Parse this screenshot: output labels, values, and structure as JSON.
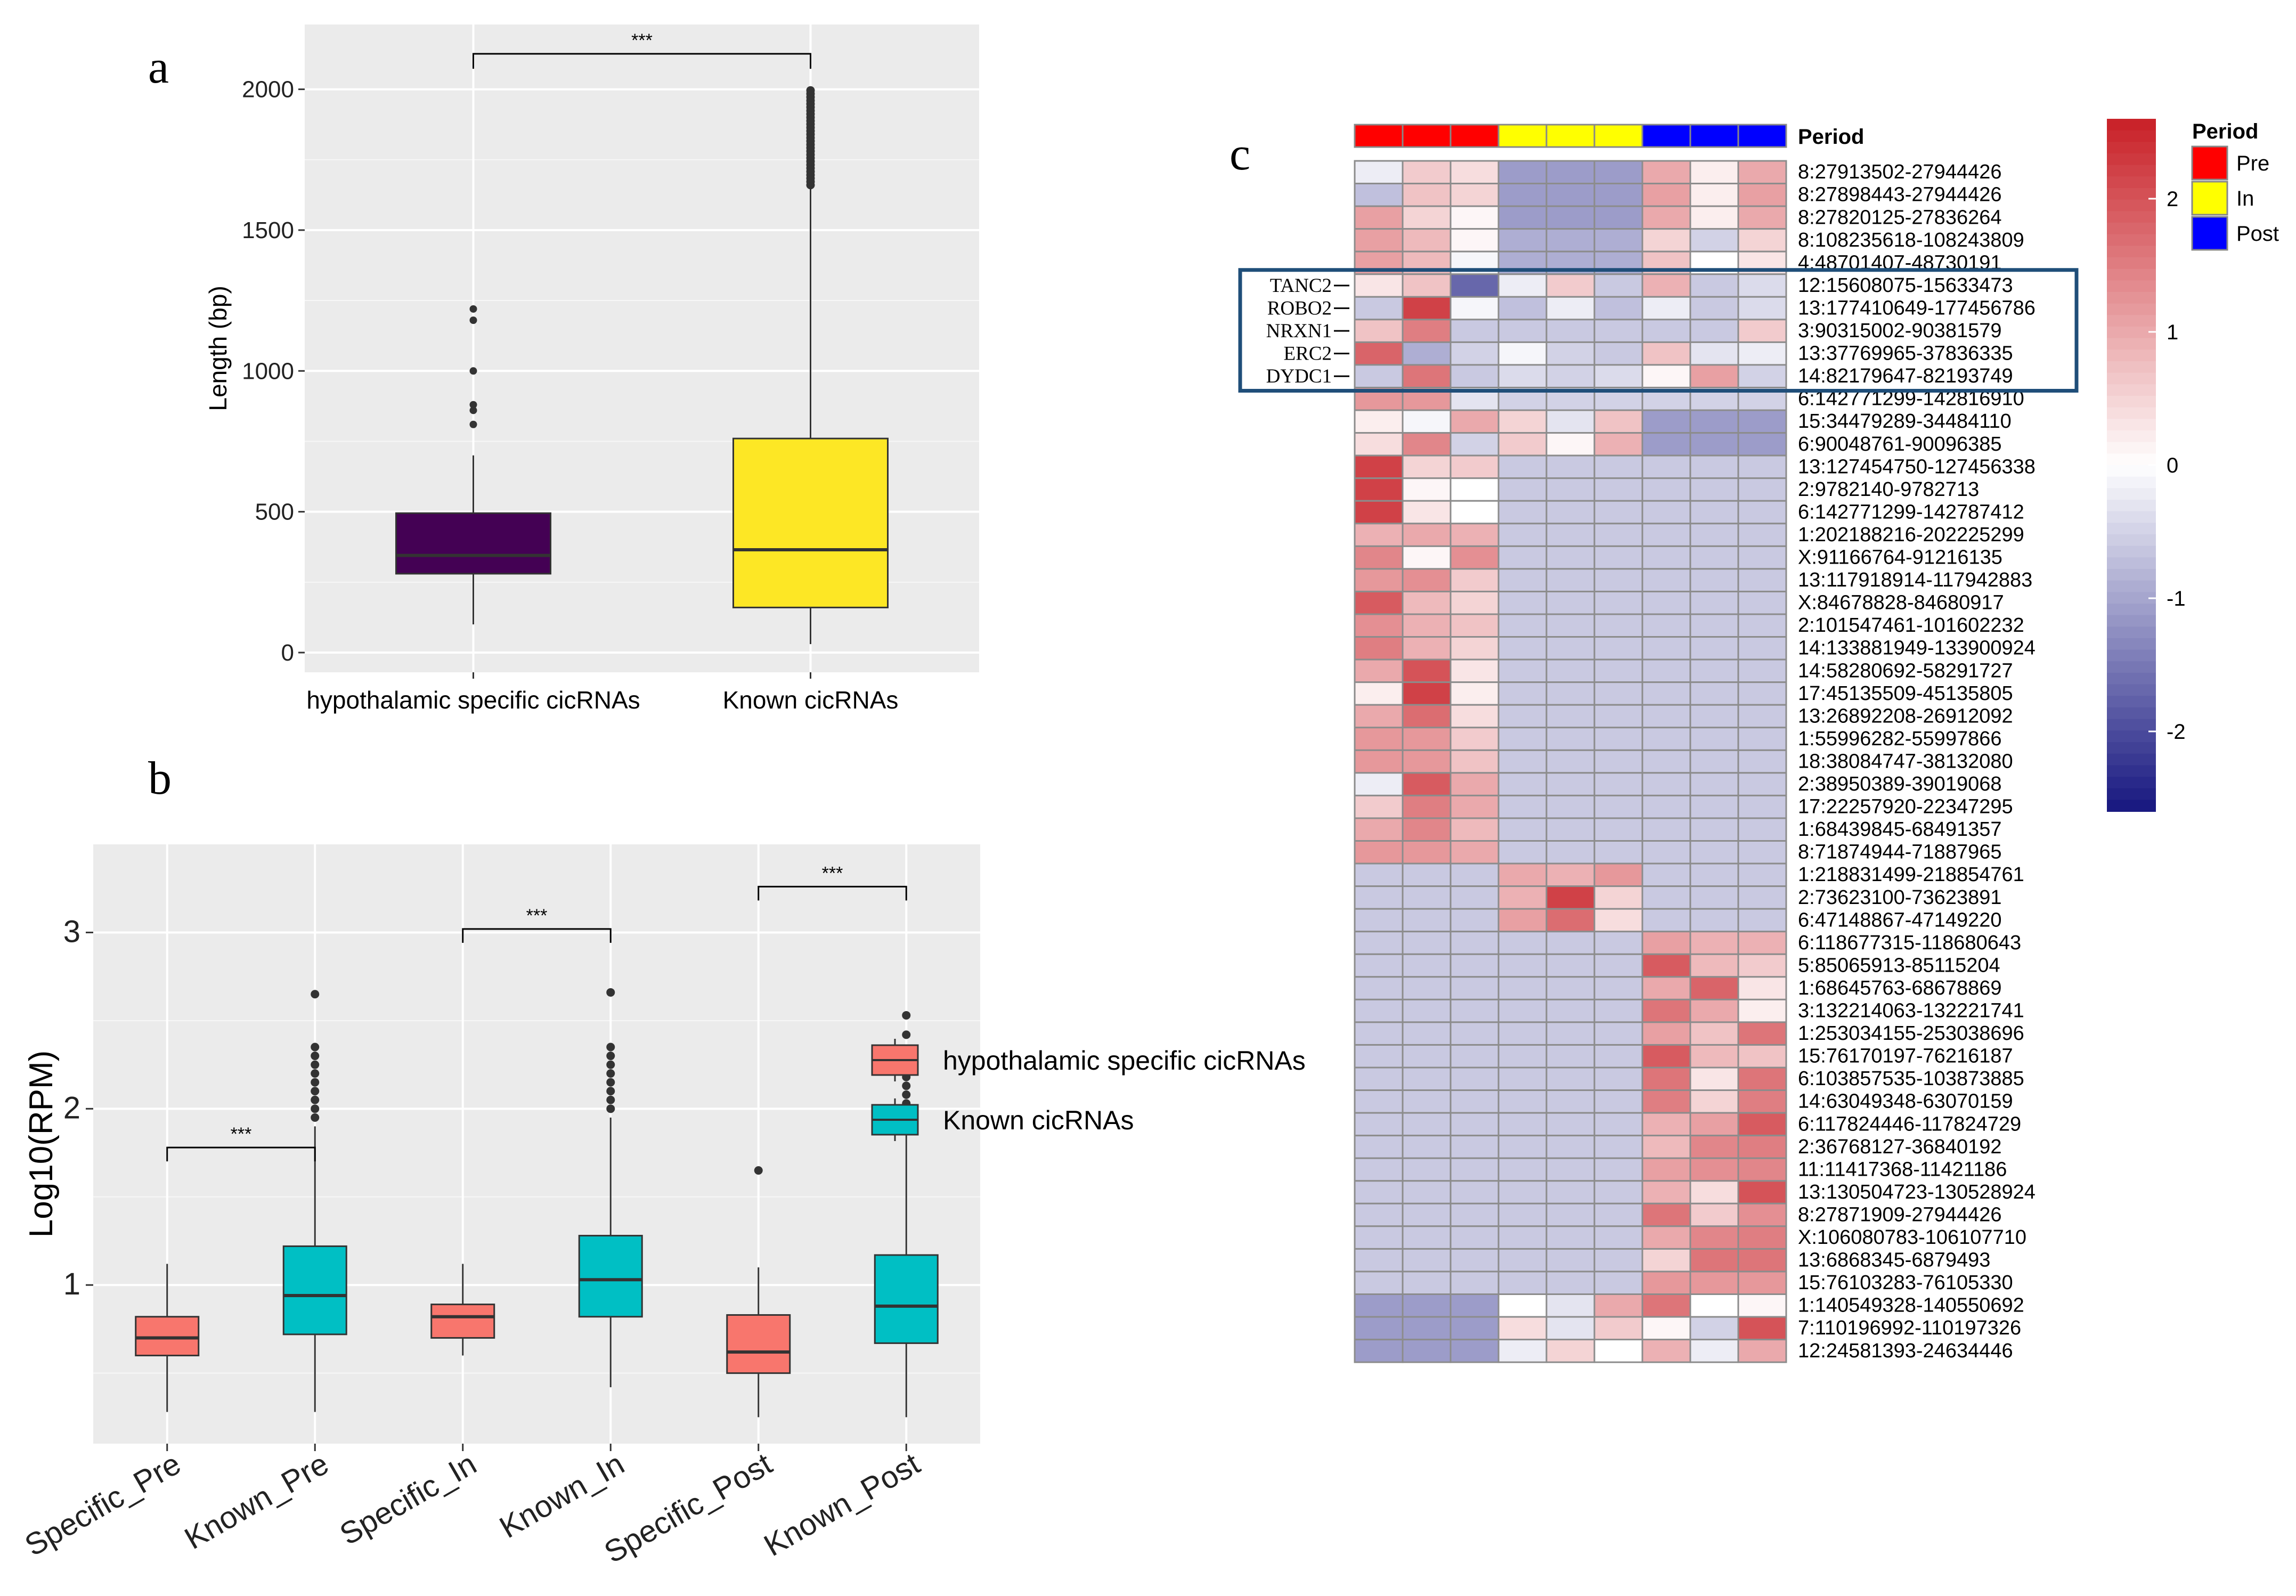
{
  "panels": {
    "a": "a",
    "b": "b",
    "c": "c"
  },
  "chart_data": [
    {
      "type": "box",
      "panel": "a",
      "ylabel": "Length (bp)",
      "xlabel": "",
      "ylim": [
        -70,
        2230
      ],
      "yticks": [
        0,
        500,
        1000,
        1500,
        2000
      ],
      "categories": [
        "hypothalamic specific cicRNAs",
        "Known cicRNAs"
      ],
      "colors": [
        "#440154",
        "#fde725"
      ],
      "boxes": [
        {
          "min": 100,
          "q1": 280,
          "median": 345,
          "q3": 495,
          "max": 700,
          "outliers": [
            810,
            860,
            880,
            1000,
            1180,
            1220
          ]
        },
        {
          "min": 30,
          "q1": 160,
          "median": 365,
          "q3": 760,
          "max": 1650,
          "outliers_range": [
            1660,
            2000
          ]
        }
      ],
      "significance": [
        {
          "from": 0,
          "to": 1,
          "label": "***"
        }
      ]
    },
    {
      "type": "box",
      "panel": "b",
      "ylabel": "Log10(RPM)",
      "xlabel": "",
      "ylim": [
        0.1,
        3.5
      ],
      "yticks": [
        1,
        2,
        3
      ],
      "categories": [
        "Specific_Pre",
        "Known_Pre",
        "Specific_In",
        "Known_In",
        "Specific_Post",
        "Known_Post"
      ],
      "colors": [
        "#f8766d",
        "#00bfc4",
        "#f8766d",
        "#00bfc4",
        "#f8766d",
        "#00bfc4"
      ],
      "boxes": [
        {
          "min": 0.28,
          "q1": 0.6,
          "median": 0.7,
          "q3": 0.82,
          "max": 1.12,
          "outliers": []
        },
        {
          "min": 0.28,
          "q1": 0.72,
          "median": 0.94,
          "q3": 1.22,
          "max": 1.9,
          "outliers": [
            1.95,
            2.0,
            2.05,
            2.1,
            2.15,
            2.2,
            2.25,
            2.3,
            2.35,
            2.65
          ]
        },
        {
          "min": 0.6,
          "q1": 0.7,
          "median": 0.82,
          "q3": 0.89,
          "max": 1.12,
          "outliers": []
        },
        {
          "min": 0.42,
          "q1": 0.82,
          "median": 1.03,
          "q3": 1.28,
          "max": 1.95,
          "outliers": [
            2.0,
            2.05,
            2.1,
            2.15,
            2.2,
            2.25,
            2.3,
            2.35,
            2.66
          ]
        },
        {
          "min": 0.25,
          "q1": 0.5,
          "median": 0.62,
          "q3": 0.83,
          "max": 1.1,
          "outliers": [
            1.65
          ]
        },
        {
          "min": 0.25,
          "q1": 0.67,
          "median": 0.88,
          "q3": 1.17,
          "max": 1.92,
          "outliers": [
            1.98,
            2.03,
            2.08,
            2.13,
            2.18,
            2.23,
            2.28,
            2.33,
            2.42,
            2.53
          ]
        }
      ],
      "significance": [
        {
          "from": 0,
          "to": 1,
          "label": "***",
          "y": 1.78
        },
        {
          "from": 2,
          "to": 3,
          "label": "***",
          "y": 3.02
        },
        {
          "from": 4,
          "to": 5,
          "label": "***",
          "y": 3.26
        }
      ],
      "legend": [
        {
          "label": "hypothalamic specific cicRNAs",
          "color": "#f8766d"
        },
        {
          "label": "Known cicRNAs",
          "color": "#00bfc4"
        }
      ]
    },
    {
      "type": "heatmap",
      "panel": "c",
      "annotation_title": "Period",
      "columns_period": [
        "Pre",
        "Pre",
        "Pre",
        "In",
        "In",
        "In",
        "Post",
        "Post",
        "Post"
      ],
      "period_colors": {
        "Pre": "#ff0000",
        "In": "#ffff00",
        "Post": "#0000ff"
      },
      "legend_title": "Period",
      "legend_items": [
        "Pre",
        "In",
        "Post"
      ],
      "color_scale": {
        "min": -2.6,
        "max": 2.6,
        "low": "#16167f",
        "mid": "#ffffff",
        "high": "#c81f26",
        "ticks": [
          2,
          1,
          0,
          -1,
          -2
        ]
      },
      "highlight_genes": [
        "TANC2",
        "ROBO2",
        "NRXN1",
        "ERC2",
        "DYDC1"
      ],
      "highlight_rows": [
        5,
        6,
        7,
        8,
        9
      ],
      "rows": [
        {
          "label": "8:27913502-27944426",
          "values": [
            -0.2,
            0.6,
            0.4,
            -1.1,
            -1.1,
            -1.1,
            1.0,
            0.2,
            1.0
          ]
        },
        {
          "label": "8:27898443-27944426",
          "values": [
            -0.7,
            0.7,
            0.5,
            -1.1,
            -1.1,
            -1.1,
            1.1,
            0.2,
            1.1
          ]
        },
        {
          "label": "8:27820125-27836264",
          "values": [
            1.1,
            0.5,
            0.1,
            -1.1,
            -1.1,
            -1.1,
            1.0,
            0.2,
            1.0
          ]
        },
        {
          "label": "8:108235618-108243809",
          "values": [
            1.1,
            0.8,
            0.1,
            -0.9,
            -0.9,
            -0.9,
            0.5,
            -0.5,
            0.5
          ]
        },
        {
          "label": "4:48701407-48730191",
          "values": [
            1.1,
            0.8,
            -0.1,
            -0.9,
            -0.9,
            -0.9,
            0.7,
            0.0,
            0.3
          ]
        },
        {
          "label": "12:15608075-15633473",
          "values": [
            0.3,
            0.7,
            -1.7,
            -0.2,
            0.6,
            -0.6,
            0.9,
            -0.6,
            -0.4
          ]
        },
        {
          "label": "13:177410649-177456786",
          "values": [
            -0.6,
            2.2,
            -0.1,
            -0.7,
            -0.2,
            -0.7,
            -0.2,
            -0.6,
            -0.4
          ]
        },
        {
          "label": "3:90315002-90381579",
          "values": [
            0.7,
            1.5,
            -0.6,
            -0.6,
            -0.6,
            -0.6,
            -0.6,
            -0.6,
            0.6
          ]
        },
        {
          "label": "13:37769965-37836335",
          "values": [
            1.8,
            -0.9,
            -0.5,
            -0.1,
            -0.5,
            -0.6,
            0.7,
            -0.3,
            -0.2
          ]
        },
        {
          "label": "14:82179647-82193749",
          "values": [
            -0.6,
            1.6,
            -0.6,
            -0.4,
            -0.5,
            -0.4,
            0.1,
            1.1,
            -0.5
          ]
        },
        {
          "label": "6:142771299-142816910",
          "values": [
            1.2,
            1.2,
            -0.3,
            -0.5,
            -0.5,
            -0.5,
            -0.5,
            -0.5,
            -0.5
          ]
        },
        {
          "label": "15:34479289-34484110",
          "values": [
            0.2,
            -0.1,
            1.0,
            0.5,
            -0.3,
            0.7,
            -1.1,
            -1.1,
            -1.1
          ]
        },
        {
          "label": "6:90048761-90096385",
          "values": [
            0.4,
            1.4,
            -0.5,
            0.6,
            0.1,
            0.9,
            -1.1,
            -1.1,
            -1.1
          ]
        },
        {
          "label": "13:127454750-127456338",
          "values": [
            2.2,
            0.5,
            0.6,
            -0.6,
            -0.6,
            -0.6,
            -0.6,
            -0.6,
            -0.6
          ]
        },
        {
          "label": "2:9782140-9782713",
          "values": [
            2.2,
            0.1,
            0.0,
            -0.6,
            -0.6,
            -0.6,
            -0.6,
            -0.6,
            -0.6
          ]
        },
        {
          "label": "6:142771299-142787412",
          "values": [
            2.2,
            0.3,
            0.0,
            -0.6,
            -0.6,
            -0.6,
            -0.6,
            -0.6,
            -0.6
          ]
        },
        {
          "label": "1:202188216-202225299",
          "values": [
            0.9,
            1.0,
            0.9,
            -0.6,
            -0.6,
            -0.6,
            -0.6,
            -0.6,
            -0.6
          ]
        },
        {
          "label": "X:91166764-91216135",
          "values": [
            1.4,
            0.1,
            1.3,
            -0.6,
            -0.6,
            -0.6,
            -0.6,
            -0.6,
            -0.6
          ]
        },
        {
          "label": "13:117918914-117942883",
          "values": [
            1.2,
            1.3,
            0.6,
            -0.6,
            -0.6,
            -0.6,
            -0.6,
            -0.6,
            -0.6
          ]
        },
        {
          "label": "X:84678828-84680917",
          "values": [
            1.9,
            0.8,
            0.5,
            -0.6,
            -0.6,
            -0.6,
            -0.6,
            -0.6,
            -0.6
          ]
        },
        {
          "label": "2:101547461-101602232",
          "values": [
            1.3,
            0.9,
            0.7,
            -0.6,
            -0.6,
            -0.6,
            -0.6,
            -0.6,
            -0.6
          ]
        },
        {
          "label": "14:133881949-133900924",
          "values": [
            1.5,
            0.9,
            0.5,
            -0.6,
            -0.6,
            -0.6,
            -0.6,
            -0.6,
            -0.6
          ]
        },
        {
          "label": "14:58280692-58291727",
          "values": [
            1.0,
            2.0,
            0.3,
            -0.6,
            -0.6,
            -0.6,
            -0.6,
            -0.6,
            -0.6
          ]
        },
        {
          "label": "17:45135509-45135805",
          "values": [
            0.2,
            2.2,
            0.2,
            -0.6,
            -0.6,
            -0.6,
            -0.6,
            -0.6,
            -0.6
          ]
        },
        {
          "label": "13:26892208-26912092",
          "values": [
            1.0,
            1.7,
            0.4,
            -0.6,
            -0.6,
            -0.6,
            -0.6,
            -0.6,
            -0.6
          ]
        },
        {
          "label": "1:55996282-55997866",
          "values": [
            1.2,
            1.2,
            0.6,
            -0.6,
            -0.6,
            -0.6,
            -0.6,
            -0.6,
            -0.6
          ]
        },
        {
          "label": "18:38084747-38132080",
          "values": [
            1.2,
            1.2,
            0.7,
            -0.6,
            -0.6,
            -0.6,
            -0.6,
            -0.6,
            -0.6
          ]
        },
        {
          "label": "2:38950389-39019068",
          "values": [
            -0.2,
            1.9,
            1.0,
            -0.6,
            -0.6,
            -0.6,
            -0.6,
            -0.6,
            -0.6
          ]
        },
        {
          "label": "17:22257920-22347295",
          "values": [
            0.6,
            1.5,
            1.0,
            -0.6,
            -0.6,
            -0.6,
            -0.6,
            -0.6,
            -0.6
          ]
        },
        {
          "label": "1:68439845-68491357",
          "values": [
            1.0,
            1.4,
            0.8,
            -0.6,
            -0.6,
            -0.6,
            -0.6,
            -0.6,
            -0.6
          ]
        },
        {
          "label": "8:71874944-71887965",
          "values": [
            1.2,
            1.2,
            1.0,
            -0.6,
            -0.6,
            -0.6,
            -0.6,
            -0.6,
            -0.6
          ]
        },
        {
          "label": "1:218831499-218854761",
          "values": [
            -0.6,
            -0.6,
            -0.6,
            1.0,
            0.9,
            1.2,
            -0.6,
            -0.6,
            -0.6
          ]
        },
        {
          "label": "2:73623100-73623891",
          "values": [
            -0.6,
            -0.6,
            -0.6,
            0.9,
            2.2,
            0.5,
            -0.6,
            -0.6,
            -0.6
          ]
        },
        {
          "label": "6:47148867-47149220",
          "values": [
            -0.6,
            -0.6,
            -0.6,
            1.1,
            1.7,
            0.4,
            -0.6,
            -0.6,
            -0.6
          ]
        },
        {
          "label": "6:118677315-118680643",
          "values": [
            -0.6,
            -0.6,
            -0.6,
            -0.6,
            -0.6,
            -0.6,
            1.1,
            0.9,
            0.9
          ]
        },
        {
          "label": "5:85065913-85115204",
          "values": [
            -0.6,
            -0.6,
            -0.6,
            -0.6,
            -0.6,
            -0.6,
            1.9,
            0.8,
            0.6
          ]
        },
        {
          "label": "1:68645763-68678869",
          "values": [
            -0.6,
            -0.6,
            -0.6,
            -0.6,
            -0.6,
            -0.6,
            1.0,
            1.8,
            0.3
          ]
        },
        {
          "label": "3:132214063-132221741",
          "values": [
            -0.6,
            -0.6,
            -0.6,
            -0.6,
            -0.6,
            -0.6,
            1.6,
            1.0,
            0.2
          ]
        },
        {
          "label": "1:253034155-253038696",
          "values": [
            -0.6,
            -0.6,
            -0.6,
            -0.6,
            -0.6,
            -0.6,
            1.1,
            0.7,
            1.6
          ]
        },
        {
          "label": "15:76170197-76216187",
          "values": [
            -0.6,
            -0.6,
            -0.6,
            -0.6,
            -0.6,
            -0.6,
            1.9,
            0.8,
            0.7
          ]
        },
        {
          "label": "6:103857535-103873885",
          "values": [
            -0.6,
            -0.6,
            -0.6,
            -0.6,
            -0.6,
            -0.6,
            1.6,
            0.3,
            1.6
          ]
        },
        {
          "label": "14:63049348-63070159",
          "values": [
            -0.6,
            -0.6,
            -0.6,
            -0.6,
            -0.6,
            -0.6,
            1.5,
            0.5,
            1.5
          ]
        },
        {
          "label": "6:117824446-117824729",
          "values": [
            -0.6,
            -0.6,
            -0.6,
            -0.6,
            -0.6,
            -0.6,
            0.9,
            1.1,
            1.9
          ]
        },
        {
          "label": "2:36768127-36840192",
          "values": [
            -0.6,
            -0.6,
            -0.6,
            -0.6,
            -0.6,
            -0.6,
            0.8,
            1.4,
            1.5
          ]
        },
        {
          "label": "11:11417368-11421186",
          "values": [
            -0.6,
            -0.6,
            -0.6,
            -0.6,
            -0.6,
            -0.6,
            1.1,
            1.3,
            1.4
          ]
        },
        {
          "label": "13:130504723-130528924",
          "values": [
            -0.6,
            -0.6,
            -0.6,
            -0.6,
            -0.6,
            -0.6,
            0.9,
            0.4,
            2.0
          ]
        },
        {
          "label": "8:27871909-27944426",
          "values": [
            -0.6,
            -0.6,
            -0.6,
            -0.6,
            -0.6,
            -0.6,
            1.6,
            0.6,
            1.3
          ]
        },
        {
          "label": "X:106080783-106107710",
          "values": [
            -0.6,
            -0.6,
            -0.6,
            -0.6,
            -0.6,
            -0.6,
            1.0,
            1.4,
            1.5
          ]
        },
        {
          "label": "13:6868345-6879493",
          "values": [
            -0.6,
            -0.6,
            -0.6,
            -0.6,
            -0.6,
            -0.6,
            0.5,
            1.6,
            1.6
          ]
        },
        {
          "label": "15:76103283-76105330",
          "values": [
            -0.6,
            -0.6,
            -0.6,
            -0.6,
            -0.6,
            -0.6,
            1.2,
            1.2,
            1.2
          ]
        },
        {
          "label": "1:140549328-140550692",
          "values": [
            -1.1,
            -1.1,
            -1.1,
            0.0,
            -0.3,
            1.0,
            1.6,
            0.0,
            0.1
          ]
        },
        {
          "label": "7:110196992-110197326",
          "values": [
            -1.1,
            -1.1,
            -1.1,
            0.4,
            -0.3,
            0.6,
            0.1,
            -0.5,
            2.0
          ]
        },
        {
          "label": "12:24581393-24634446",
          "values": [
            -1.1,
            -1.1,
            -1.1,
            -0.2,
            0.5,
            0.0,
            0.9,
            -0.2,
            1.0
          ]
        }
      ]
    }
  ]
}
